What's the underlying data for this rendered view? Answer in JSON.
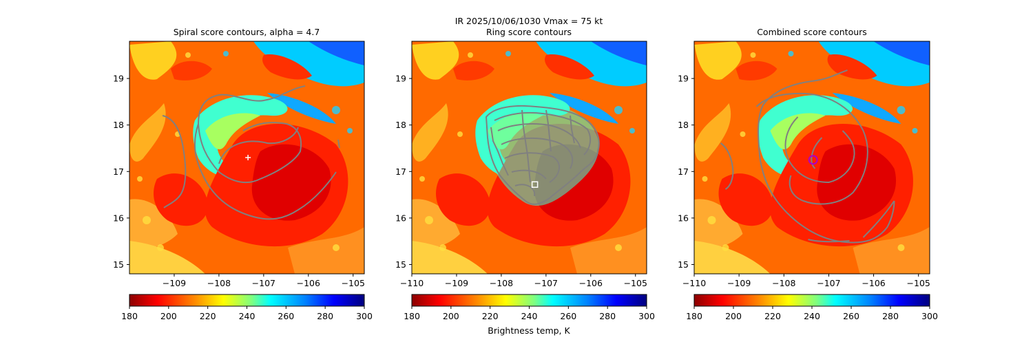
{
  "figure": {
    "suptitle_line1": "IR  2025/10/06/1030    Vmax = 75 kt",
    "colorbar_label": "Brightness temp, K"
  },
  "chart_data": [
    {
      "type": "heatmap",
      "title": "Spiral score contours, alpha =  4.7",
      "xlim": [
        -110,
        -104.75
      ],
      "ylim": [
        14.8,
        19.8
      ],
      "x_ticks": [
        -109,
        -108,
        -107,
        -106,
        -105
      ],
      "x_tick_labels": [
        "−109",
        "−108",
        "−107",
        "−106",
        "−105"
      ],
      "y_ticks": [
        15,
        16,
        17,
        18,
        19
      ],
      "y_tick_labels": [
        "15",
        "16",
        "17",
        "18",
        "19"
      ],
      "colorbar": {
        "min": 180,
        "max": 300,
        "ticks": [
          "180",
          "200",
          "220",
          "240",
          "260",
          "280",
          "300"
        ]
      },
      "center_marker": {
        "type": "plus",
        "lon": -107.35,
        "lat": 17.3,
        "color": "#ffffff"
      }
    },
    {
      "type": "heatmap",
      "title": "Ring score contours",
      "xlim": [
        -110,
        -104.75
      ],
      "ylim": [
        14.8,
        19.8
      ],
      "x_ticks": [
        -110,
        -109,
        -108,
        -107,
        -106,
        -105
      ],
      "x_tick_labels": [
        "−110",
        "−109",
        "−108",
        "−107",
        "−106",
        "−105"
      ],
      "y_ticks": [
        15,
        16,
        17,
        18,
        19
      ],
      "y_tick_labels": [
        "15",
        "16",
        "17",
        "18",
        "19"
      ],
      "colorbar": {
        "min": 180,
        "max": 300,
        "ticks": [
          "180",
          "200",
          "220",
          "240",
          "260",
          "280",
          "300"
        ]
      },
      "center_marker": {
        "type": "square",
        "lon": -107.25,
        "lat": 16.72,
        "color": "#ffffff"
      }
    },
    {
      "type": "heatmap",
      "title": "Combined score contours",
      "xlim": [
        -110,
        -104.75
      ],
      "ylim": [
        14.8,
        19.8
      ],
      "x_ticks": [
        -110,
        -109,
        -108,
        -107,
        -106,
        -105
      ],
      "x_tick_labels": [
        "−110",
        "−109",
        "−108",
        "−107",
        "−106",
        "−105"
      ],
      "y_ticks": [
        15,
        16,
        17,
        18,
        19
      ],
      "y_tick_labels": [
        "15",
        "16",
        "17",
        "18",
        "19"
      ],
      "colorbar": {
        "min": 180,
        "max": 300,
        "ticks": [
          "180",
          "200",
          "220",
          "240",
          "260",
          "280",
          "300"
        ]
      },
      "center_marker": {
        "type": "circle",
        "lon": -107.35,
        "lat": 17.25,
        "color": "#aa00cc"
      }
    }
  ]
}
